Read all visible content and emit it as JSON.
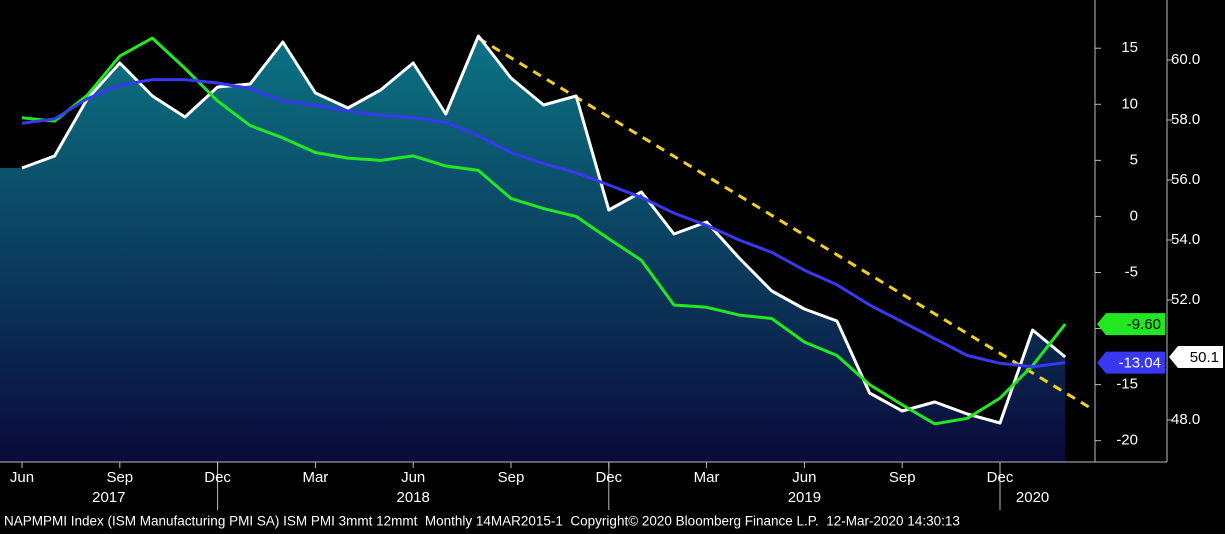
{
  "chart_data": {
    "type": "line",
    "categories": [
      "Jun",
      null,
      null,
      "Sep",
      null,
      null,
      "Dec",
      null,
      null,
      "Mar",
      null,
      null,
      "Jun",
      null,
      null,
      "Sep",
      null,
      null,
      "Dec",
      null,
      null,
      "Mar",
      null,
      null,
      "Jun",
      null,
      null,
      "Sep",
      null,
      null,
      "Dec",
      null,
      null
    ],
    "x_groups": [
      {
        "label": "2017",
        "start": 0,
        "end": 6
      },
      {
        "label": "2018",
        "start": 7,
        "end": 18
      },
      {
        "label": "2019",
        "start": 19,
        "end": 30
      },
      {
        "label": "2020",
        "start": 31,
        "end": 32
      }
    ],
    "series": [
      {
        "color": "#ffffff",
        "axis": "y2",
        "fill": true,
        "values": [
          56.4,
          56.8,
          58.7,
          59.9,
          58.8,
          58.1,
          59.1,
          59.2,
          60.6,
          58.9,
          58.4,
          59.0,
          59.9,
          58.2,
          60.8,
          59.4,
          58.5,
          58.8,
          55.0,
          55.6,
          54.2,
          54.6,
          53.4,
          52.3,
          51.7,
          51.3,
          48.9,
          48.3,
          48.6,
          48.2,
          47.9,
          51.0,
          50.1
        ],
        "value_labels": [
          null,
          null,
          null,
          null,
          null,
          null,
          null,
          null,
          null,
          null,
          null,
          null,
          null,
          null,
          null,
          null,
          null,
          null,
          null,
          null,
          null,
          null,
          null,
          null,
          null,
          null,
          null,
          null,
          null,
          null,
          null,
          null,
          "50.1"
        ]
      },
      {
        "color": "#22e822",
        "values": [
          8.8,
          8.5,
          10.8,
          14.3,
          15.9,
          13.2,
          10.3,
          8.1,
          7.0,
          5.7,
          5.2,
          5.0,
          5.4,
          4.5,
          4.1,
          1.6,
          0.7,
          0,
          -2.0,
          -3.9,
          -7.9,
          -8.1,
          -8.8,
          -9.1,
          -11.2,
          -12.4,
          -15.0,
          -16.8,
          -18.5,
          -18.0,
          -16.2,
          -13.3,
          -9.6
        ],
        "value_labels": [
          null,
          null,
          null,
          null,
          null,
          null,
          null,
          null,
          null,
          null,
          null,
          null,
          null,
          null,
          null,
          null,
          null,
          null,
          null,
          null,
          null,
          null,
          null,
          null,
          null,
          null,
          null,
          null,
          null,
          null,
          null,
          null,
          "-9.60"
        ]
      },
      {
        "color": "#3838f0",
        "values": [
          8.3,
          8.7,
          10.5,
          11.7,
          12.2,
          12.2,
          11.9,
          11.4,
          10.3,
          9.9,
          9.4,
          9.0,
          8.8,
          8.4,
          7.2,
          5.7,
          4.7,
          3.9,
          2.8,
          1.7,
          0.3,
          -0.8,
          -2.1,
          -3.2,
          -4.8,
          -6.1,
          -7.9,
          -9.4,
          -10.9,
          -12.4,
          -13.1,
          -13.4,
          -13.04
        ],
        "value_labels": [
          null,
          null,
          null,
          null,
          null,
          null,
          null,
          null,
          null,
          null,
          null,
          null,
          null,
          null,
          null,
          null,
          null,
          null,
          null,
          null,
          null,
          null,
          null,
          null,
          null,
          null,
          null,
          null,
          null,
          null,
          null,
          null,
          "-13.04"
        ]
      }
    ],
    "trendline": {
      "color": "#f0d020",
      "from": [
        14,
        15.9
      ],
      "to": [
        32.9,
        -17.3
      ]
    },
    "ylim": [
      -21.9,
      19.3
    ],
    "yticks": [
      -20,
      -15,
      -10,
      -5,
      0,
      5,
      10,
      15
    ],
    "y2lim": [
      46.6,
      62.0
    ],
    "y2ticks": [
      {
        "value": 48,
        "label": "48.0"
      },
      {
        "value": 52,
        "label": "52.0"
      },
      {
        "value": 54,
        "label": "54.0"
      },
      {
        "value": 56,
        "label": "56.0"
      },
      {
        "value": 58,
        "label": "58.0"
      },
      {
        "value": 60,
        "label": "60.0"
      }
    ],
    "footer": "NAPMPMI Index (ISM Manufacturing PMI SA) ISM PMI 3mmt 12mmt  Monthly 14MAR2015-1  Copyright© 2020 Bloomberg Finance L.P.  12-Mar-2020 14:30:13"
  }
}
